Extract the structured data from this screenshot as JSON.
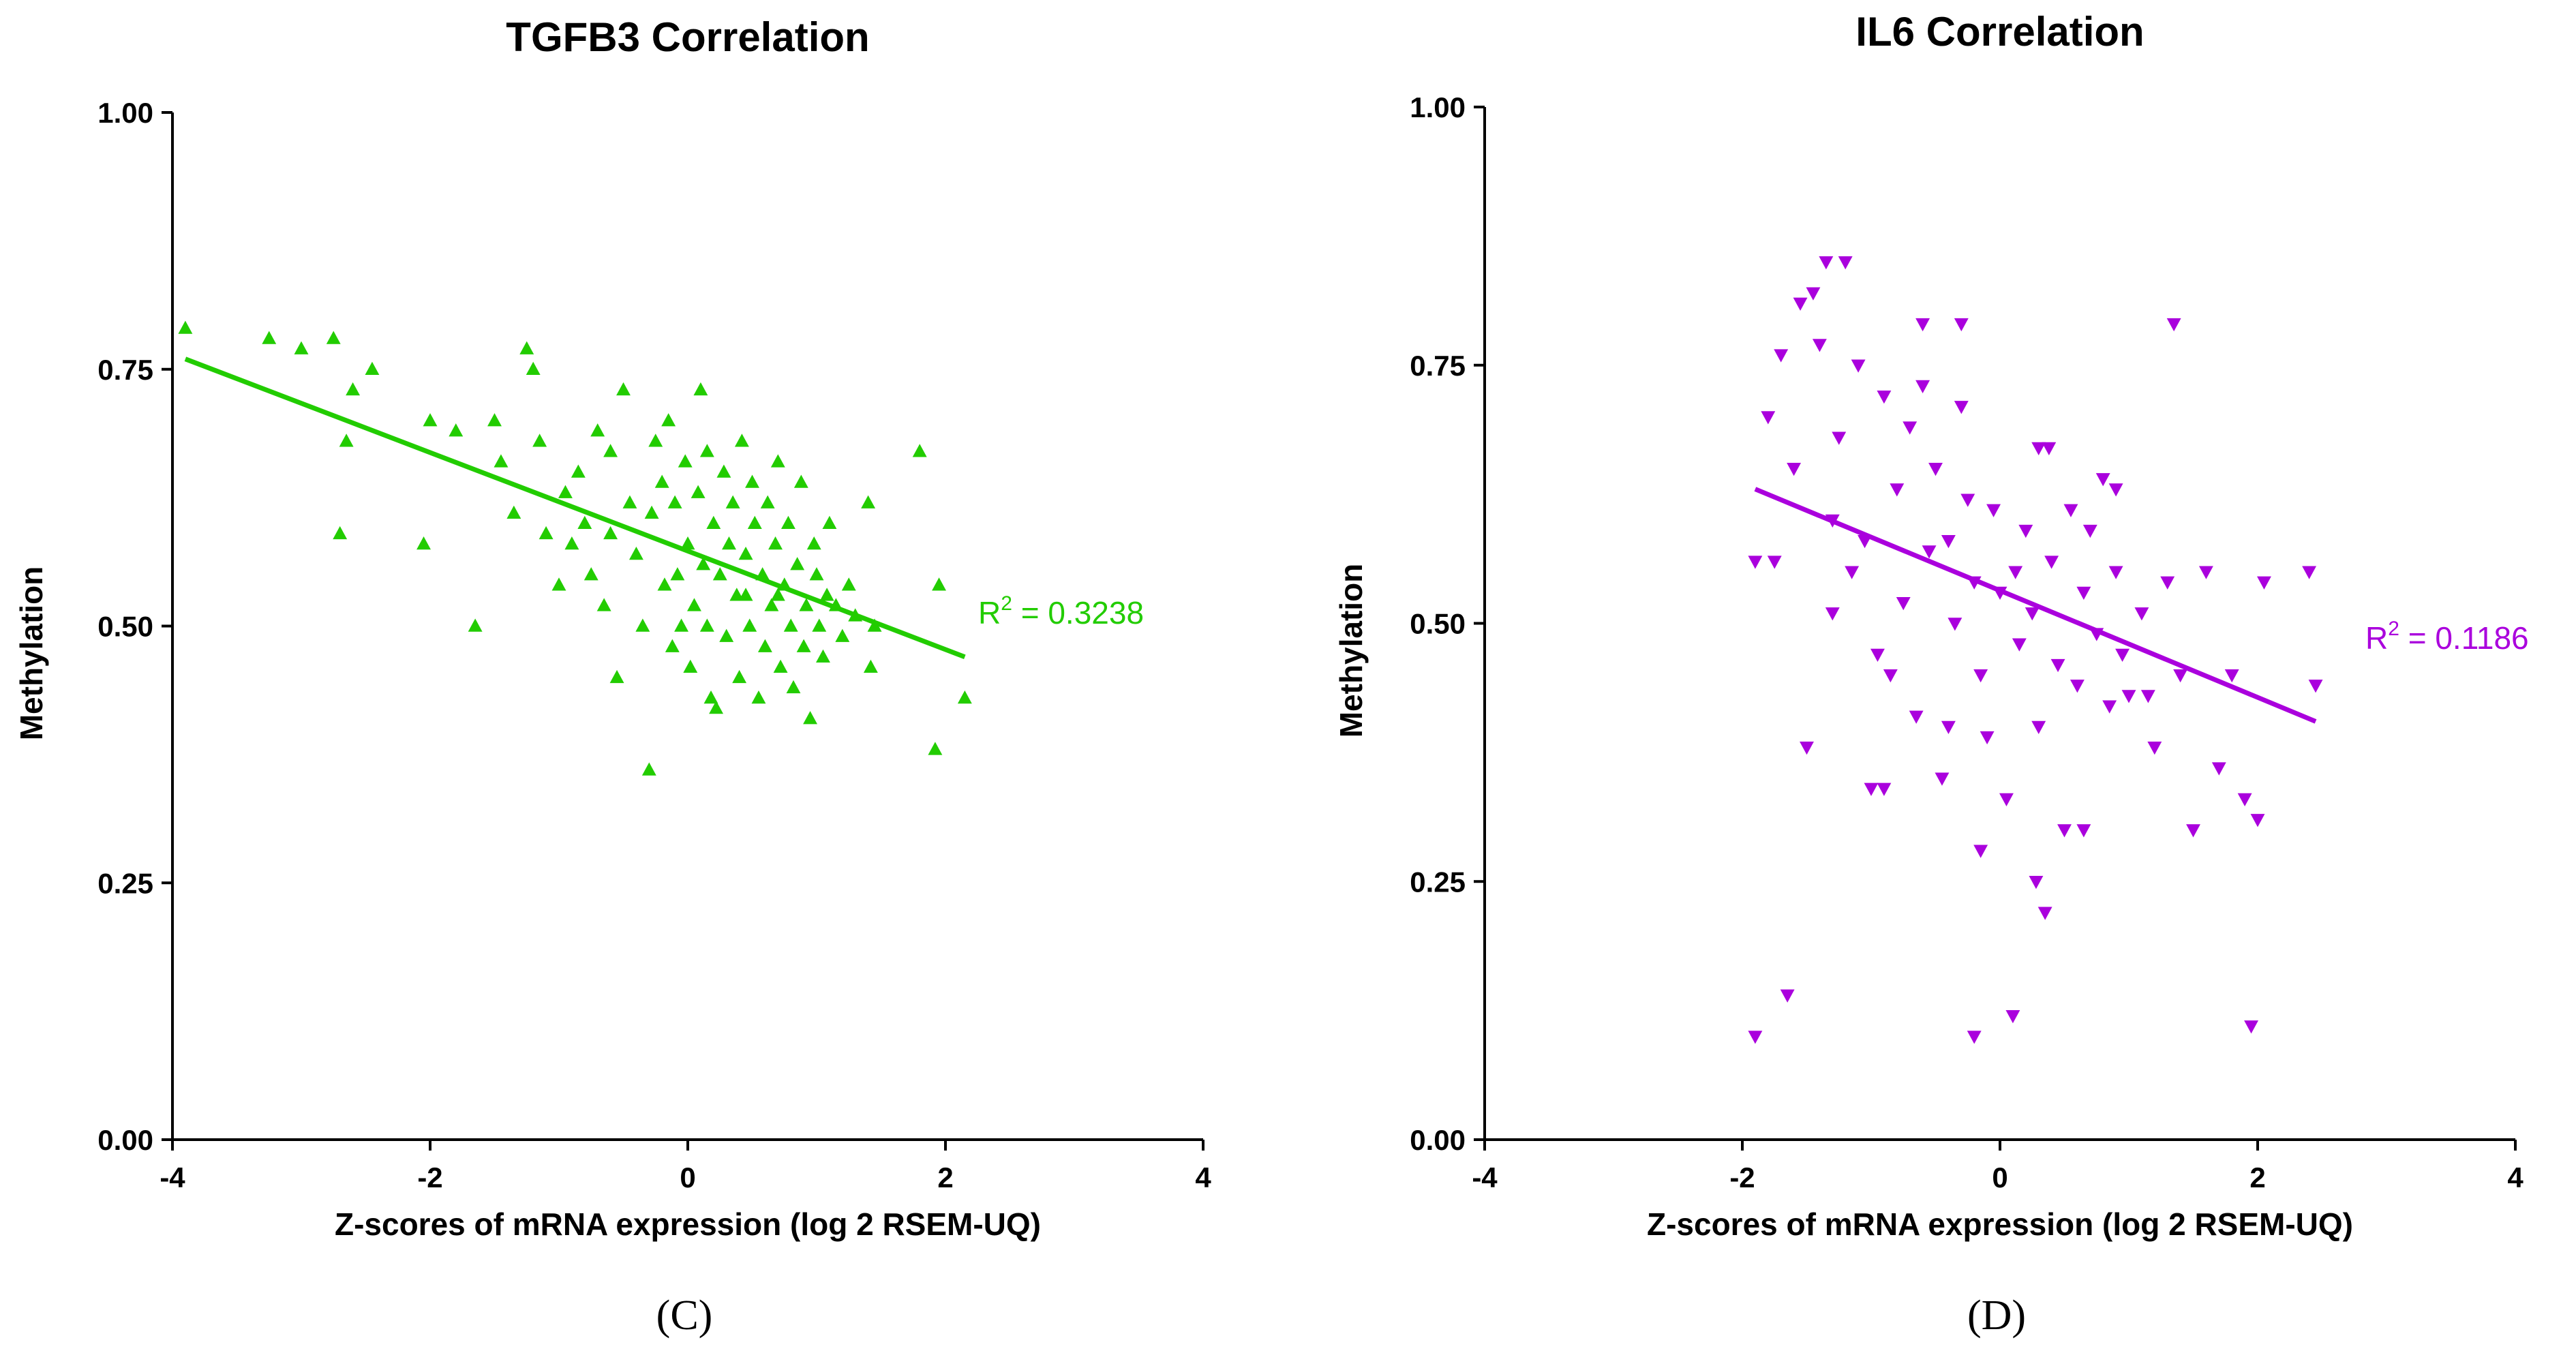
{
  "chart_data": [
    {
      "type": "scatter",
      "panel_label": "(C)",
      "title": "TGFB3 Correlation",
      "xlabel": "Z-scores of mRNA expression (log 2 RSEM-UQ)",
      "ylabel": "Methylation",
      "xlim": [
        -4,
        4
      ],
      "ylim": [
        0,
        1
      ],
      "xticks": [
        "-4",
        "-2",
        "0",
        "2",
        "4"
      ],
      "yticks": [
        "0.00",
        "0.25",
        "0.50",
        "0.75",
        "1.00"
      ],
      "color": "#22cc00",
      "marker": "triangle-up",
      "r2_prefix": "R",
      "r2_sup": "2",
      "r2_suffix": " = 0.3238",
      "fit_line": {
        "x": [
          -3.9,
          2.15
        ],
        "y": [
          0.76,
          0.47
        ]
      },
      "points": [
        [
          -3.9,
          0.79
        ],
        [
          -3.25,
          0.78
        ],
        [
          -3.0,
          0.77
        ],
        [
          -2.75,
          0.78
        ],
        [
          -2.6,
          0.73
        ],
        [
          -2.45,
          0.75
        ],
        [
          -2.65,
          0.68
        ],
        [
          -2.7,
          0.59
        ],
        [
          -2.05,
          0.58
        ],
        [
          -2.0,
          0.7
        ],
        [
          -1.8,
          0.69
        ],
        [
          -1.65,
          0.5
        ],
        [
          -1.5,
          0.7
        ],
        [
          -1.45,
          0.66
        ],
        [
          -1.35,
          0.61
        ],
        [
          -1.25,
          0.77
        ],
        [
          -1.2,
          0.75
        ],
        [
          -1.15,
          0.68
        ],
        [
          -1.1,
          0.59
        ],
        [
          -1.0,
          0.54
        ],
        [
          -0.95,
          0.63
        ],
        [
          -0.85,
          0.65
        ],
        [
          -0.8,
          0.6
        ],
        [
          -0.75,
          0.55
        ],
        [
          -0.7,
          0.69
        ],
        [
          -0.65,
          0.52
        ],
        [
          -0.6,
          0.67
        ],
        [
          -0.55,
          0.45
        ],
        [
          -0.5,
          0.73
        ],
        [
          -0.45,
          0.62
        ],
        [
          -0.4,
          0.57
        ],
        [
          -0.35,
          0.5
        ],
        [
          -0.3,
          0.36
        ],
        [
          -0.28,
          0.61
        ],
        [
          -0.25,
          0.68
        ],
        [
          -0.2,
          0.64
        ],
        [
          -0.18,
          0.54
        ],
        [
          -0.15,
          0.7
        ],
        [
          -0.12,
          0.48
        ],
        [
          -0.1,
          0.62
        ],
        [
          -0.08,
          0.55
        ],
        [
          -0.05,
          0.5
        ],
        [
          -0.02,
          0.66
        ],
        [
          0.0,
          0.58
        ],
        [
          0.02,
          0.46
        ],
        [
          0.05,
          0.52
        ],
        [
          0.08,
          0.63
        ],
        [
          0.1,
          0.73
        ],
        [
          0.12,
          0.56
        ],
        [
          0.15,
          0.5
        ],
        [
          0.18,
          0.43
        ],
        [
          0.2,
          0.6
        ],
        [
          0.22,
          0.42
        ],
        [
          0.25,
          0.55
        ],
        [
          0.28,
          0.65
        ],
        [
          0.3,
          0.49
        ],
        [
          0.32,
          0.58
        ],
        [
          0.35,
          0.62
        ],
        [
          0.38,
          0.53
        ],
        [
          0.4,
          0.45
        ],
        [
          0.42,
          0.68
        ],
        [
          0.45,
          0.57
        ],
        [
          0.48,
          0.5
        ],
        [
          0.5,
          0.64
        ],
        [
          0.52,
          0.6
        ],
        [
          0.55,
          0.43
        ],
        [
          0.58,
          0.55
        ],
        [
          0.6,
          0.48
        ],
        [
          0.62,
          0.62
        ],
        [
          0.65,
          0.52
        ],
        [
          0.68,
          0.58
        ],
        [
          0.7,
          0.66
        ],
        [
          0.72,
          0.46
        ],
        [
          0.75,
          0.54
        ],
        [
          0.78,
          0.6
        ],
        [
          0.8,
          0.5
        ],
        [
          0.82,
          0.44
        ],
        [
          0.85,
          0.56
        ],
        [
          0.88,
          0.64
        ],
        [
          0.9,
          0.48
        ],
        [
          0.92,
          0.52
        ],
        [
          0.95,
          0.41
        ],
        [
          0.98,
          0.58
        ],
        [
          1.0,
          0.55
        ],
        [
          1.02,
          0.5
        ],
        [
          1.05,
          0.47
        ],
        [
          1.08,
          0.53
        ],
        [
          1.1,
          0.6
        ],
        [
          1.15,
          0.52
        ],
        [
          1.2,
          0.49
        ],
        [
          1.25,
          0.54
        ],
        [
          1.3,
          0.51
        ],
        [
          1.4,
          0.62
        ],
        [
          1.42,
          0.46
        ],
        [
          1.45,
          0.5
        ],
        [
          1.8,
          0.67
        ],
        [
          1.95,
          0.54
        ],
        [
          1.92,
          0.38
        ],
        [
          2.15,
          0.43
        ],
        [
          -0.9,
          0.58
        ],
        [
          -0.6,
          0.59
        ],
        [
          0.15,
          0.67
        ],
        [
          0.45,
          0.53
        ],
        [
          0.7,
          0.53
        ]
      ]
    },
    {
      "type": "scatter",
      "panel_label": "(D)",
      "title": "IL6 Correlation",
      "xlabel": "Z-scores of mRNA expression (log 2 RSEM-UQ)",
      "ylabel": "Methylation",
      "xlim": [
        -4,
        4
      ],
      "ylim": [
        0,
        1
      ],
      "xticks": [
        "-4",
        "-2",
        "0",
        "2",
        "4"
      ],
      "yticks": [
        "0.00",
        "0.25",
        "0.50",
        "0.75",
        "1.00"
      ],
      "color": "#aa00dd",
      "marker": "triangle-down",
      "r2_prefix": "R",
      "r2_sup": "2",
      "r2_suffix": " = 0.1186",
      "fit_line": {
        "x": [
          -1.9,
          2.45
        ],
        "y": [
          0.63,
          0.405
        ]
      },
      "points": [
        [
          -1.9,
          0.1
        ],
        [
          -1.65,
          0.14
        ],
        [
          -1.9,
          0.56
        ],
        [
          -1.75,
          0.56
        ],
        [
          -1.8,
          0.7
        ],
        [
          -1.7,
          0.76
        ],
        [
          -1.6,
          0.65
        ],
        [
          -1.55,
          0.81
        ],
        [
          -1.5,
          0.38
        ],
        [
          -1.45,
          0.82
        ],
        [
          -1.4,
          0.77
        ],
        [
          -1.35,
          0.85
        ],
        [
          -1.3,
          0.6
        ],
        [
          -1.25,
          0.68
        ],
        [
          -1.2,
          0.85
        ],
        [
          -1.15,
          0.55
        ],
        [
          -1.1,
          0.75
        ],
        [
          -1.05,
          0.58
        ],
        [
          -1.0,
          0.34
        ],
        [
          -0.95,
          0.47
        ],
        [
          -0.9,
          0.72
        ],
        [
          -0.85,
          0.45
        ],
        [
          -0.8,
          0.63
        ],
        [
          -0.75,
          0.52
        ],
        [
          -0.7,
          0.69
        ],
        [
          -0.65,
          0.41
        ],
        [
          -0.6,
          0.79
        ],
        [
          -0.55,
          0.57
        ],
        [
          -0.5,
          0.65
        ],
        [
          -0.45,
          0.35
        ],
        [
          -0.4,
          0.58
        ],
        [
          -0.35,
          0.5
        ],
        [
          -0.3,
          0.71
        ],
        [
          -0.25,
          0.62
        ],
        [
          -0.2,
          0.54
        ],
        [
          -0.15,
          0.45
        ],
        [
          -0.1,
          0.39
        ],
        [
          -0.05,
          0.61
        ],
        [
          0.0,
          0.53
        ],
        [
          0.05,
          0.33
        ],
        [
          0.1,
          0.12
        ],
        [
          0.12,
          0.55
        ],
        [
          0.15,
          0.48
        ],
        [
          0.2,
          0.59
        ],
        [
          0.25,
          0.51
        ],
        [
          0.28,
          0.25
        ],
        [
          0.3,
          0.4
        ],
        [
          0.35,
          0.22
        ],
        [
          0.38,
          0.67
        ],
        [
          0.4,
          0.56
        ],
        [
          0.45,
          0.46
        ],
        [
          0.5,
          0.3
        ],
        [
          0.55,
          0.61
        ],
        [
          0.6,
          0.44
        ],
        [
          0.65,
          0.53
        ],
        [
          0.7,
          0.59
        ],
        [
          0.75,
          0.49
        ],
        [
          0.8,
          0.64
        ],
        [
          0.85,
          0.42
        ],
        [
          0.9,
          0.55
        ],
        [
          0.95,
          0.47
        ],
        [
          1.0,
          0.43
        ],
        [
          1.1,
          0.51
        ],
        [
          1.2,
          0.38
        ],
        [
          1.3,
          0.54
        ],
        [
          1.35,
          0.79
        ],
        [
          1.4,
          0.45
        ],
        [
          1.5,
          0.3
        ],
        [
          1.6,
          0.55
        ],
        [
          1.7,
          0.36
        ],
        [
          1.8,
          0.45
        ],
        [
          1.9,
          0.33
        ],
        [
          1.95,
          0.11
        ],
        [
          2.0,
          0.31
        ],
        [
          2.05,
          0.54
        ],
        [
          2.4,
          0.55
        ],
        [
          2.45,
          0.44
        ],
        [
          -0.2,
          0.1
        ],
        [
          -0.9,
          0.34
        ],
        [
          -0.3,
          0.79
        ],
        [
          0.3,
          0.67
        ],
        [
          -0.6,
          0.73
        ],
        [
          -1.3,
          0.51
        ],
        [
          -0.4,
          0.4
        ],
        [
          0.65,
          0.3
        ],
        [
          1.15,
          0.43
        ],
        [
          -0.15,
          0.28
        ],
        [
          0.9,
          0.63
        ]
      ]
    }
  ]
}
